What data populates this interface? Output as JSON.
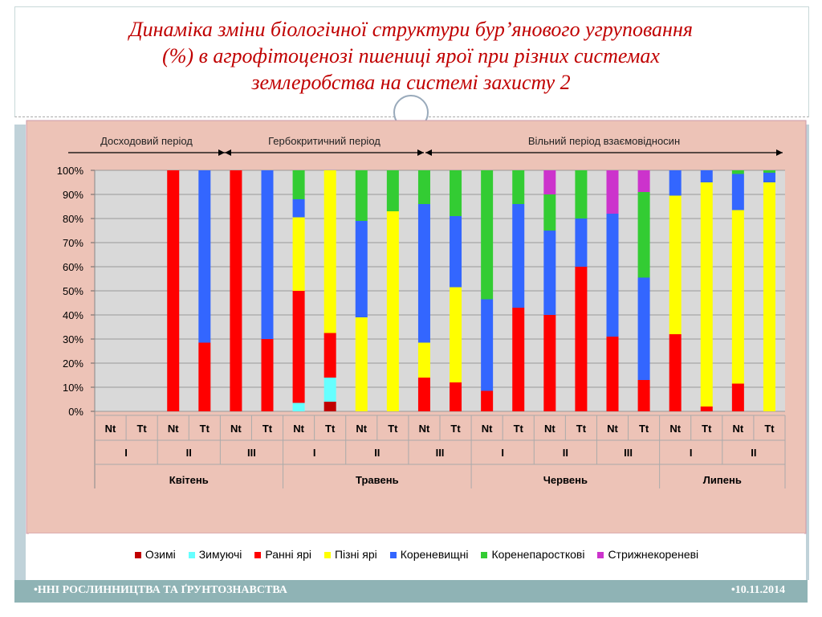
{
  "title_lines": [
    "Динаміка зміни біологічної структури бур’янового угруповання",
    "(%) в агрофітоценозі пшениці ярої при різних системах",
    "землеробства на системі захисту 2"
  ],
  "footer": {
    "left": "•ННІ РОСЛИННИЦТВА ТА ҐРУНТОЗНАВСТВА",
    "right": "•10.11.2014"
  },
  "chart_data": {
    "type": "stacked_bar",
    "periods": [
      "Досходовий період",
      "Гербокритичний період",
      "Вільний період взаємовідносин"
    ],
    "months": [
      {
        "name": "Квітень",
        "phases": [
          {
            "name": "I",
            "categories": [
              "Nt",
              "Tt"
            ]
          },
          {
            "name": "II",
            "categories": [
              "Nt",
              "Tt"
            ]
          },
          {
            "name": "III",
            "categories": [
              "Nt",
              "Tt"
            ]
          }
        ]
      },
      {
        "name": "Травень",
        "phases": [
          {
            "name": "I",
            "categories": [
              "Nt",
              "Tt"
            ]
          },
          {
            "name": "II",
            "categories": [
              "Nt",
              "Tt"
            ]
          },
          {
            "name": "III",
            "categories": [
              "Nt",
              "Tt"
            ]
          }
        ]
      },
      {
        "name": "Червень",
        "phases": [
          {
            "name": "I",
            "categories": [
              "Nt",
              "Tt"
            ]
          },
          {
            "name": "II",
            "categories": [
              "Nt",
              "Tt"
            ]
          },
          {
            "name": "III",
            "categories": [
              "Nt",
              "Tt"
            ]
          }
        ]
      },
      {
        "name": "Липень",
        "phases": [
          {
            "name": "I",
            "categories": [
              "Nt",
              "Tt"
            ]
          },
          {
            "name": "II",
            "categories": [
              "Nt",
              "Tt"
            ]
          }
        ]
      }
    ],
    "ylim": [
      0,
      100
    ],
    "yticks": [
      {
        "value": 0,
        "label": "0%"
      },
      {
        "value": 10,
        "label": "10%"
      },
      {
        "value": 20,
        "label": "20%"
      },
      {
        "value": 30,
        "label": "30%"
      },
      {
        "value": 40,
        "label": "40%"
      },
      {
        "value": 50,
        "label": "50%"
      },
      {
        "value": 60,
        "label": "60%"
      },
      {
        "value": 70,
        "label": "70%"
      },
      {
        "value": 80,
        "label": "80%"
      },
      {
        "value": 90,
        "label": "90%"
      },
      {
        "value": 100,
        "label": "100%"
      }
    ],
    "grid": true,
    "series": [
      {
        "name": "Озимі",
        "color": "#c00000",
        "values": [
          0,
          0,
          0,
          0,
          0,
          0,
          0,
          4,
          0,
          0,
          0,
          0,
          0,
          0,
          0,
          0,
          0,
          0,
          0,
          0,
          0,
          0
        ]
      },
      {
        "name": "Зимуючі",
        "color": "#66ffff",
        "values": [
          0,
          0,
          0,
          0,
          0,
          0,
          3.5,
          10,
          0,
          0,
          0,
          0,
          0,
          0,
          0,
          0,
          0,
          0,
          0,
          0,
          0,
          0
        ]
      },
      {
        "name": "Ранні ярі",
        "color": "#ff0000",
        "values": [
          0,
          0,
          100,
          28.5,
          100,
          30,
          46.5,
          18.5,
          0,
          0,
          14,
          12,
          8.5,
          43,
          40,
          60,
          31,
          13,
          32,
          2,
          11.5,
          0
        ]
      },
      {
        "name": "Пізні ярі",
        "color": "#ffff00",
        "values": [
          0,
          0,
          0,
          0,
          0,
          0,
          30.5,
          67.5,
          39,
          83,
          14.5,
          39.5,
          0,
          0,
          0,
          0,
          0,
          0,
          57.5,
          93,
          72,
          95
        ]
      },
      {
        "name": "Кореневищні",
        "color": "#3366ff",
        "values": [
          0,
          0,
          0,
          71.5,
          0,
          70,
          7.5,
          0,
          40,
          0,
          57.5,
          29.5,
          38,
          43,
          35,
          20,
          51,
          42.5,
          10.5,
          5,
          15,
          4
        ]
      },
      {
        "name": "Коренепаросткові",
        "color": "#33cc33",
        "values": [
          0,
          0,
          0,
          0,
          0,
          0,
          12,
          0,
          21,
          17,
          14,
          19,
          53.5,
          14,
          15,
          20,
          0,
          35.5,
          0,
          0,
          1.5,
          1
        ]
      },
      {
        "name": "Стрижнекореневі",
        "color": "#cc33cc",
        "values": [
          0,
          0,
          0,
          0,
          0,
          0,
          0,
          0,
          0,
          0,
          0,
          0,
          0,
          0,
          10,
          0,
          18,
          9,
          0,
          0,
          0,
          0
        ]
      }
    ]
  }
}
